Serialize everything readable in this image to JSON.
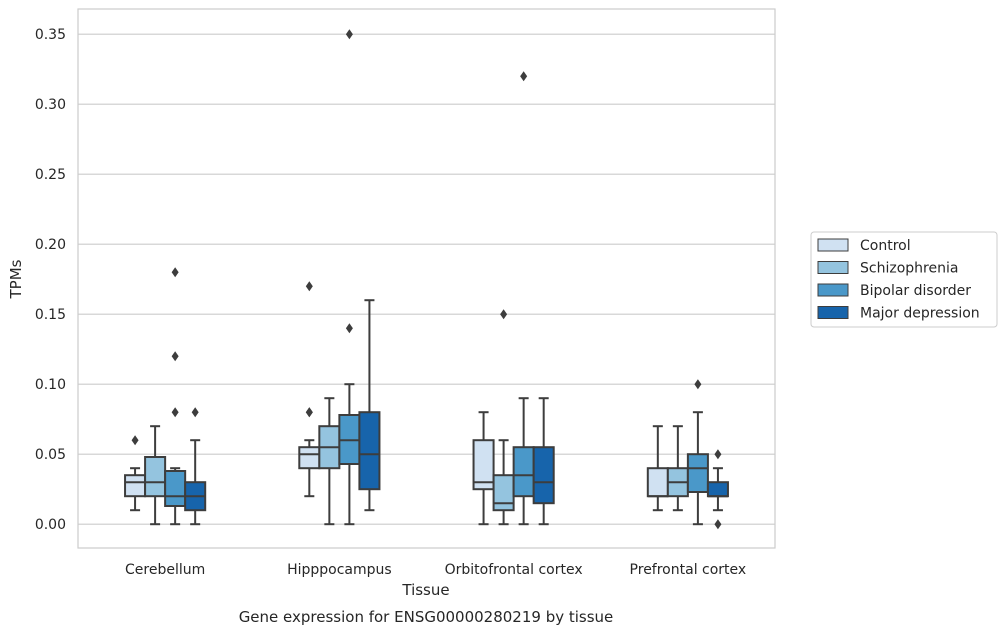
{
  "chart_data": {
    "type": "box",
    "xlabel": "Tissue",
    "ylabel": "TPMs",
    "caption": "Gene expression for ENSG00000280219 by tissue",
    "ylim": [
      -0.017,
      0.368
    ],
    "yticks": [
      "0.00",
      "0.05",
      "0.10",
      "0.15",
      "0.20",
      "0.25",
      "0.30",
      "0.35"
    ],
    "grid": "horizontal",
    "legend_position": "right",
    "categories": [
      "Cerebellum",
      "Hipppocampus",
      "Orbitofrontal cortex",
      "Prefrontal cortex"
    ],
    "series": [
      {
        "name": "Control",
        "color": "#d0e1f2",
        "boxes": [
          {
            "whislo": 0.01,
            "q1": 0.02,
            "med": 0.03,
            "q3": 0.035,
            "whishi": 0.04,
            "fliers": [
              0.06
            ]
          },
          {
            "whislo": 0.02,
            "q1": 0.04,
            "med": 0.05,
            "q3": 0.055,
            "whishi": 0.06,
            "fliers": [
              0.08,
              0.08,
              0.17
            ]
          },
          {
            "whislo": 0.0,
            "q1": 0.025,
            "med": 0.03,
            "q3": 0.06,
            "whishi": 0.08,
            "fliers": []
          },
          {
            "whislo": 0.01,
            "q1": 0.02,
            "med": 0.02,
            "q3": 0.04,
            "whishi": 0.07,
            "fliers": []
          }
        ]
      },
      {
        "name": "Schizophrenia",
        "color": "#94c4df",
        "boxes": [
          {
            "whislo": 0.0,
            "q1": 0.02,
            "med": 0.03,
            "q3": 0.048,
            "whishi": 0.07,
            "fliers": []
          },
          {
            "whislo": 0.0,
            "q1": 0.04,
            "med": 0.055,
            "q3": 0.07,
            "whishi": 0.09,
            "fliers": []
          },
          {
            "whislo": 0.0,
            "q1": 0.01,
            "med": 0.015,
            "q3": 0.035,
            "whishi": 0.06,
            "fliers": [
              0.15
            ]
          },
          {
            "whislo": 0.01,
            "q1": 0.02,
            "med": 0.03,
            "q3": 0.04,
            "whishi": 0.07,
            "fliers": []
          }
        ]
      },
      {
        "name": "Bipolar disorder",
        "color": "#4a98c9",
        "boxes": [
          {
            "whislo": 0.0,
            "q1": 0.013,
            "med": 0.02,
            "q3": 0.038,
            "whishi": 0.04,
            "fliers": [
              0.08,
              0.12,
              0.18
            ]
          },
          {
            "whislo": 0.0,
            "q1": 0.043,
            "med": 0.06,
            "q3": 0.078,
            "whishi": 0.1,
            "fliers": [
              0.14,
              0.35
            ]
          },
          {
            "whislo": 0.0,
            "q1": 0.02,
            "med": 0.035,
            "q3": 0.055,
            "whishi": 0.09,
            "fliers": [
              0.32
            ]
          },
          {
            "whislo": 0.0,
            "q1": 0.023,
            "med": 0.04,
            "q3": 0.05,
            "whishi": 0.08,
            "fliers": [
              0.1
            ]
          }
        ]
      },
      {
        "name": "Major depression",
        "color": "#1764ab",
        "boxes": [
          {
            "whislo": 0.0,
            "q1": 0.01,
            "med": 0.02,
            "q3": 0.03,
            "whishi": 0.06,
            "fliers": [
              0.08
            ]
          },
          {
            "whislo": 0.01,
            "q1": 0.025,
            "med": 0.05,
            "q3": 0.08,
            "whishi": 0.16,
            "fliers": []
          },
          {
            "whislo": 0.0,
            "q1": 0.015,
            "med": 0.03,
            "q3": 0.055,
            "whishi": 0.09,
            "fliers": []
          },
          {
            "whislo": 0.01,
            "q1": 0.02,
            "med": 0.02,
            "q3": 0.03,
            "whishi": 0.04,
            "fliers": [
              0.0,
              0.05
            ]
          }
        ]
      }
    ]
  }
}
